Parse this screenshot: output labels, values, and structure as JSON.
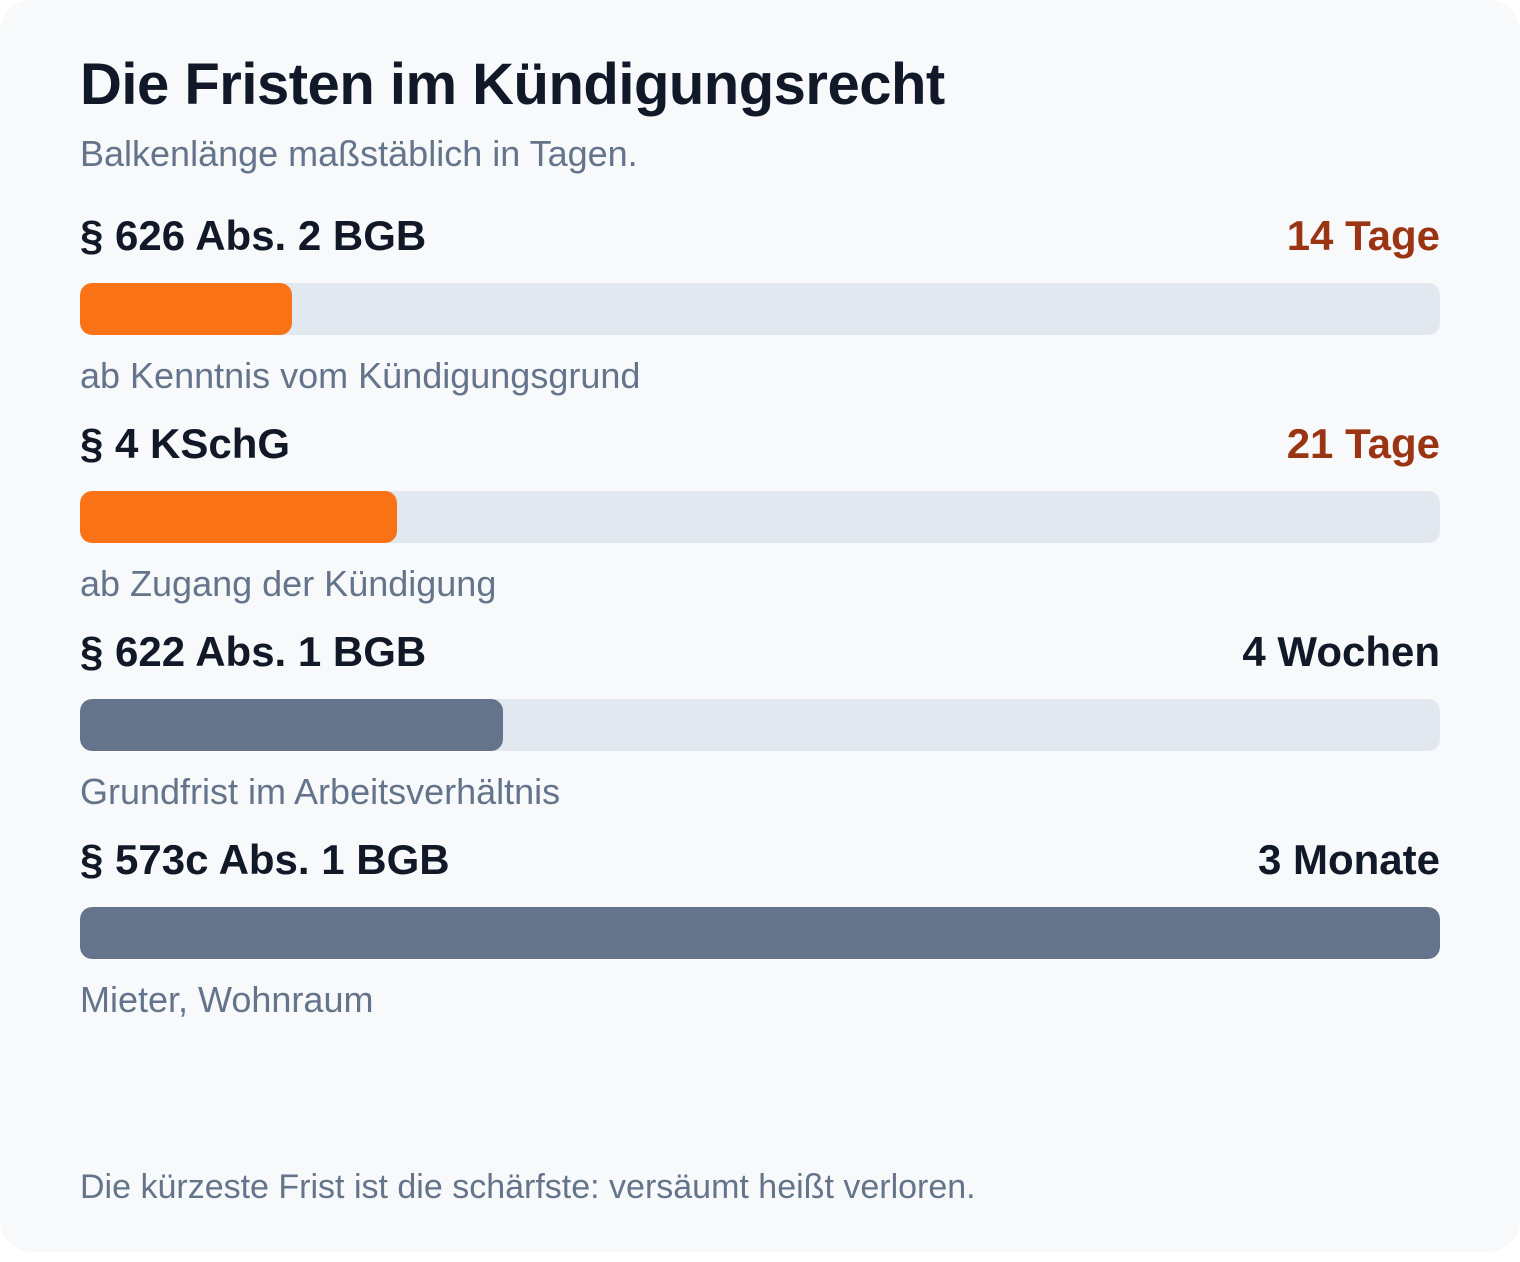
{
  "chart_data": {
    "type": "bar",
    "orientation": "horizontal",
    "title": "Die Fristen im Kündigungsrecht",
    "subtitle": "Balkenlänge maßstäblich in Tagen.",
    "footnote": "Die kürzeste Frist ist die schärfste: versäumt heißt verloren.",
    "categories": [
      "§ 626 Abs. 2 BGB",
      "§ 4 KSchG",
      "§ 622 Abs. 1 BGB",
      "§ 573c Abs. 1 BGB"
    ],
    "values": [
      14,
      21,
      28,
      90
    ],
    "value_labels": [
      "14 Tage",
      "21 Tage",
      "4 Wochen",
      "3 Monate"
    ],
    "notes": [
      "ab Kenntnis vom Kündigungsgrund",
      "ab Zugang der Kündigung",
      "Grundfrist im Arbeitsverhältnis",
      "Mieter, Wohnraum"
    ],
    "highlight": [
      true,
      true,
      false,
      false
    ],
    "xlim": [
      0,
      90
    ],
    "colors": {
      "highlight_bar": "#f97316",
      "normal_bar": "#64748b",
      "highlight_text": "#9a3412",
      "normal_text": "#111827",
      "track": "#e2e8f0"
    }
  }
}
